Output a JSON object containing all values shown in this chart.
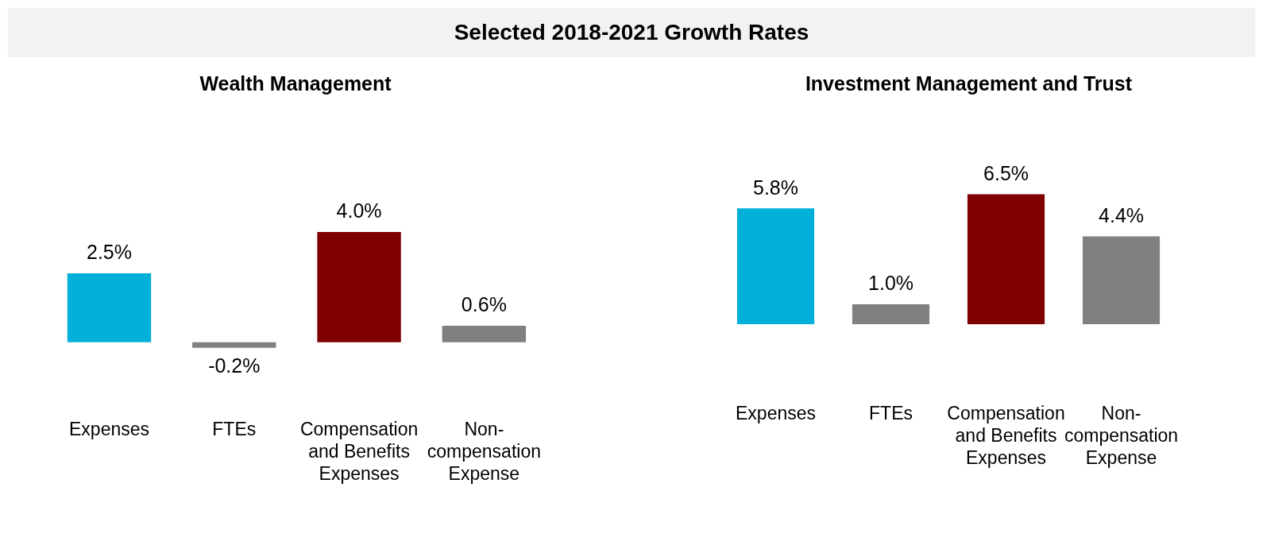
{
  "chart_data": [
    {
      "type": "other",
      "title": "Selected 2018-2021 Growth Rates"
    },
    {
      "type": "bar",
      "title": "Wealth Management",
      "categories": [
        "Expenses",
        "FTEs",
        "Compensation and Benefits Expenses",
        "Non-compensation Expense"
      ],
      "values": [
        2.5,
        -0.2,
        4.0,
        0.6
      ],
      "colors": [
        "#00b0d8",
        "#808080",
        "#7f0000",
        "#808080"
      ],
      "value_labels": [
        "2.5%",
        "-0.2%",
        "4.0%",
        "0.6%"
      ],
      "tick_labels": "x",
      "grid": false
    },
    {
      "type": "bar",
      "title": "Investment Management and Trust",
      "categories": [
        "Expenses",
        "FTEs",
        "Compensation and Benefits Expenses",
        "Non-compensation Expense"
      ],
      "values": [
        5.8,
        1.0,
        6.5,
        4.4
      ],
      "colors": [
        "#00b0d8",
        "#808080",
        "#7f0000",
        "#808080"
      ],
      "value_labels": [
        "5.8%",
        "1.0%",
        "6.5%",
        "4.4%"
      ],
      "tick_labels": "x",
      "grid": false
    }
  ]
}
